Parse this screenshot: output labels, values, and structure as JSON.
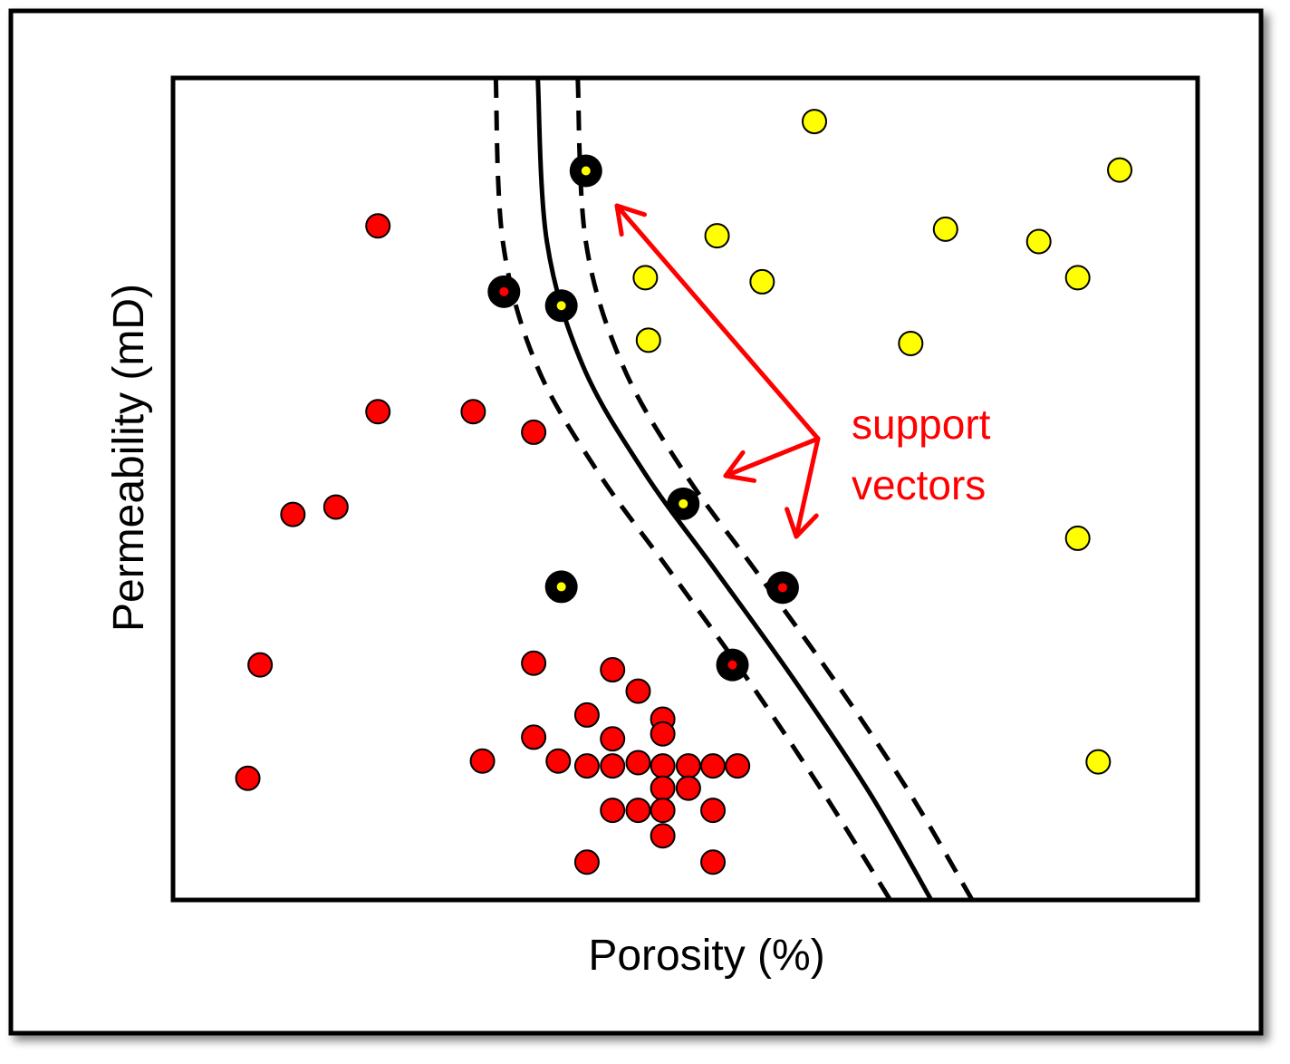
{
  "chart_data": {
    "type": "scatter",
    "title": "",
    "xlabel": "Porosity (%)",
    "ylabel": "Permeability (mD)",
    "xlim": [
      0,
      100
    ],
    "ylim": [
      0,
      100
    ],
    "grid": false,
    "annotation": {
      "text_lines": [
        "support",
        "vectors"
      ],
      "color": "#ff0000"
    },
    "colors": {
      "class_red": "#ff0000",
      "class_yellow": "#ffff00",
      "outline": "#000000",
      "arrow": "#ff0000"
    },
    "series": [
      {
        "class": "red",
        "points": [
          [
            20,
            82
          ],
          [
            20,
            59.4
          ],
          [
            29.3,
            59.4
          ],
          [
            35.2,
            56.9
          ],
          [
            11.7,
            46.9
          ],
          [
            15.9,
            47.8
          ],
          [
            8.5,
            28.6
          ],
          [
            7.3,
            14.8
          ],
          [
            35.2,
            28.8
          ],
          [
            42.9,
            28
          ],
          [
            45.4,
            25.4
          ],
          [
            40.4,
            22.5
          ],
          [
            47.8,
            22
          ],
          [
            47.8,
            20.2
          ],
          [
            35.2,
            19.8
          ],
          [
            42.9,
            19.6
          ],
          [
            30.2,
            16.9
          ],
          [
            37.6,
            16.9
          ],
          [
            40.4,
            16.3
          ],
          [
            42.9,
            16.3
          ],
          [
            45.4,
            16.7
          ],
          [
            47.8,
            16.3
          ],
          [
            50.3,
            16.3
          ],
          [
            52.7,
            16.3
          ],
          [
            55.1,
            16.3
          ],
          [
            50.3,
            13.6
          ],
          [
            47.8,
            13.6
          ],
          [
            42.9,
            10.9
          ],
          [
            45.4,
            10.9
          ],
          [
            47.8,
            10.9
          ],
          [
            52.7,
            10.9
          ],
          [
            47.8,
            7.8
          ],
          [
            40.4,
            4.6
          ],
          [
            52.7,
            4.6
          ]
        ]
      },
      {
        "class": "yellow",
        "points": [
          [
            62.6,
            94.7
          ],
          [
            92.4,
            88.8
          ],
          [
            53.1,
            80.8
          ],
          [
            75.4,
            81.6
          ],
          [
            84.5,
            80.1
          ],
          [
            46.1,
            75.7
          ],
          [
            57.5,
            75.2
          ],
          [
            88.3,
            75.7
          ],
          [
            46.4,
            68.1
          ],
          [
            72,
            67.7
          ],
          [
            88.3,
            44
          ],
          [
            90.3,
            16.8
          ]
        ]
      },
      {
        "class": "red",
        "support_vector": true,
        "points": [
          [
            32.3,
            74
          ],
          [
            59.5,
            38
          ],
          [
            54.6,
            28.6
          ]
        ]
      },
      {
        "class": "yellow",
        "support_vector": true,
        "points": [
          [
            40.3,
            88.7
          ],
          [
            37.9,
            72.3
          ],
          [
            49.8,
            48.2
          ],
          [
            37.9,
            38.1
          ]
        ]
      }
    ],
    "boundary": {
      "center": [
        [
          35.6,
          100
        ],
        [
          36.5,
          80
        ],
        [
          40,
          65
        ],
        [
          46,
          52
        ],
        [
          53,
          40
        ],
        [
          60.5,
          27
        ],
        [
          68,
          13
        ],
        [
          74,
          0
        ]
      ],
      "margin_left": [
        [
          31.5,
          100
        ],
        [
          32.2,
          80
        ],
        [
          35.5,
          65
        ],
        [
          41.5,
          52
        ],
        [
          48.5,
          40
        ],
        [
          56,
          27
        ],
        [
          63.5,
          13
        ],
        [
          70,
          0
        ]
      ],
      "margin_right": [
        [
          39.5,
          100
        ],
        [
          40.3,
          80
        ],
        [
          43.9,
          65
        ],
        [
          49.9,
          52
        ],
        [
          56.9,
          40
        ],
        [
          64.4,
          27
        ],
        [
          71.9,
          13
        ],
        [
          78,
          0
        ]
      ]
    }
  }
}
